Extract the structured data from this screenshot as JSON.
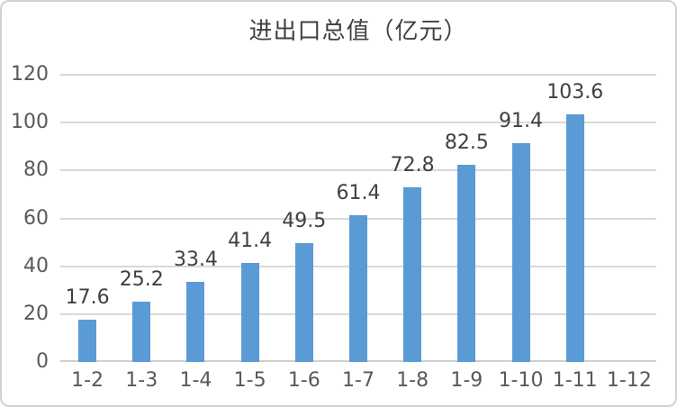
{
  "chart_data": {
    "type": "bar",
    "title": "进出口总值（亿元）",
    "categories": [
      "1-2",
      "1-3",
      "1-4",
      "1-5",
      "1-6",
      "1-7",
      "1-8",
      "1-9",
      "1-10",
      "1-11",
      "1-12"
    ],
    "values": [
      17.6,
      25.2,
      33.4,
      41.4,
      49.5,
      61.4,
      72.8,
      82.5,
      91.4,
      103.6,
      null
    ],
    "data_labels": [
      "17.6",
      "25.2",
      "33.4",
      "41.4",
      "49.5",
      "61.4",
      "72.8",
      "82.5",
      "91.4",
      "103.6",
      ""
    ],
    "xlabel": "",
    "ylabel": "",
    "ylim": [
      0,
      120
    ],
    "yticks": [
      0,
      20,
      40,
      60,
      80,
      100,
      120
    ],
    "grid": "horizontal",
    "legend": "none",
    "colors": {
      "bar": "#5b9bd5",
      "gridline": "#d9d9d9",
      "axis_line": "#d0d0d0",
      "tick_label": "#595959",
      "data_label": "#404040",
      "title": "#404040"
    }
  }
}
